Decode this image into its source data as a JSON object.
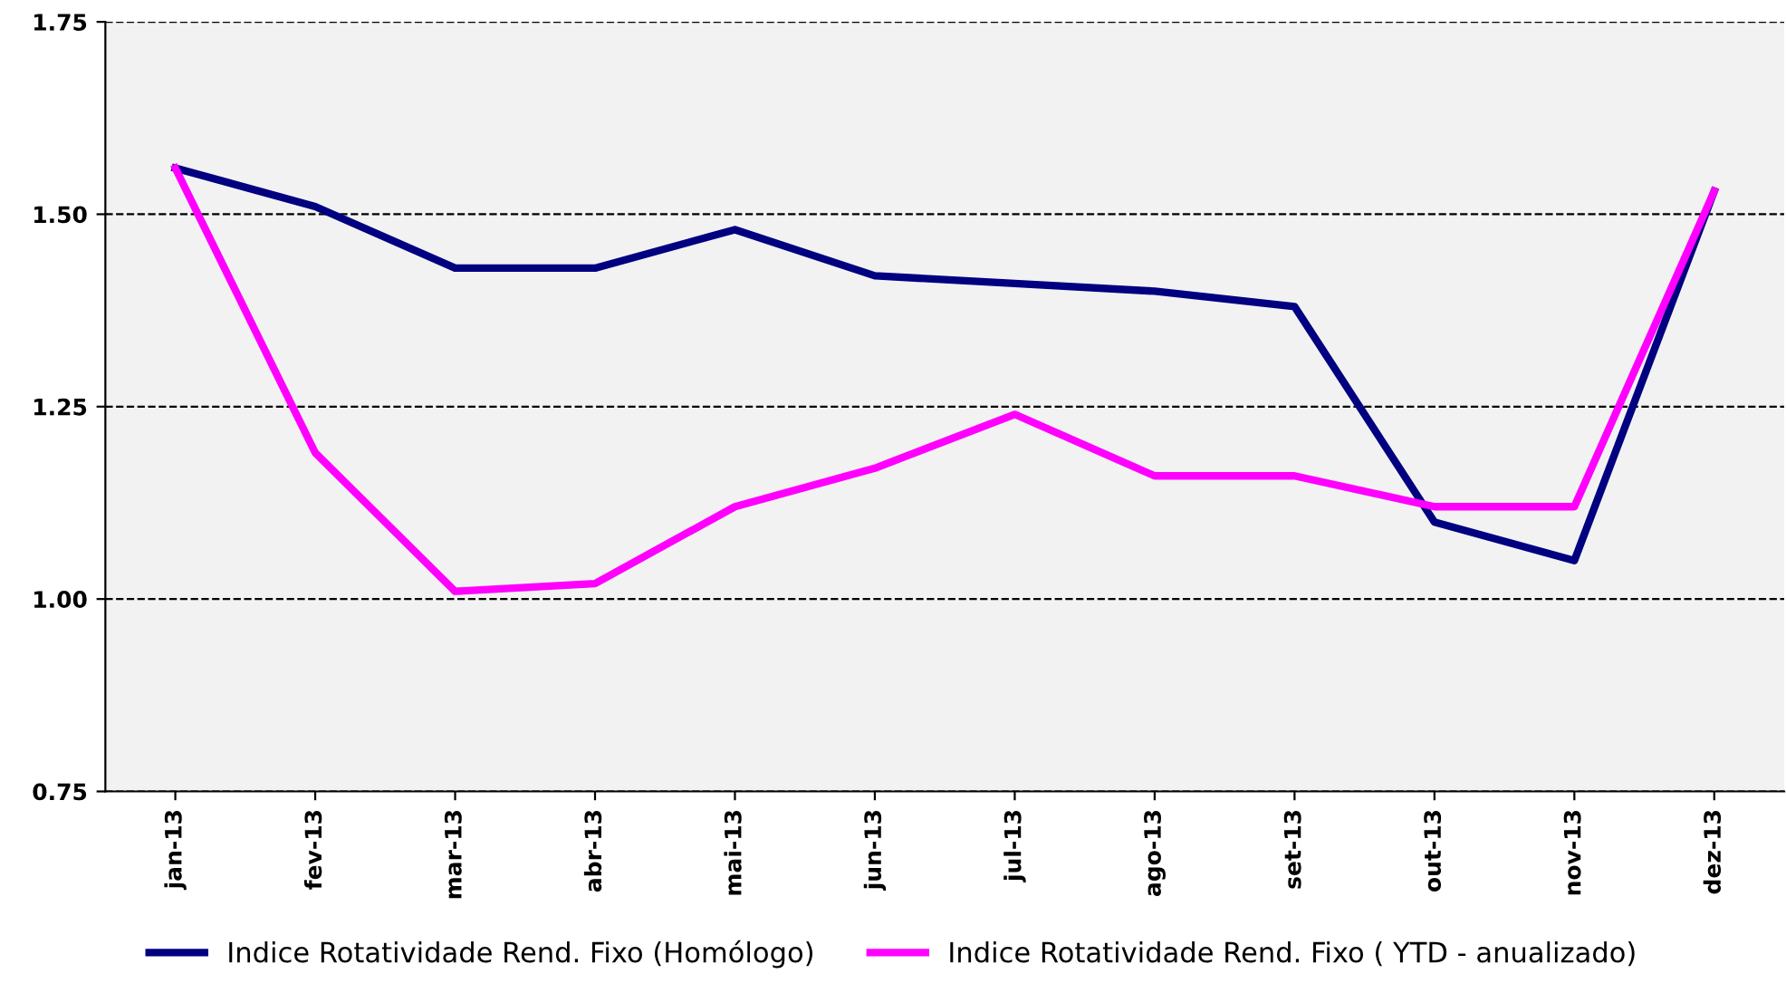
{
  "chart_data": {
    "type": "line",
    "categories": [
      "jan-13",
      "fev-13",
      "mar-13",
      "abr-13",
      "mai-13",
      "jun-13",
      "jul-13",
      "ago-13",
      "set-13",
      "out-13",
      "nov-13",
      "dez-13"
    ],
    "series": [
      {
        "name": "Indice Rotatividade Rend. Fixo (Homólogo)",
        "color": "#000080",
        "values": [
          1.56,
          1.51,
          1.43,
          1.43,
          1.48,
          1.42,
          1.41,
          1.4,
          1.38,
          1.1,
          1.05,
          1.53
        ]
      },
      {
        "name": "Indice Rotatividade Rend. Fixo ( YTD - anualizado)",
        "color": "#ff00ff",
        "values": [
          1.56,
          1.19,
          1.01,
          1.02,
          1.12,
          1.17,
          1.24,
          1.16,
          1.16,
          1.12,
          1.12,
          1.53
        ]
      }
    ],
    "ylim": [
      0.75,
      1.75
    ],
    "yticks": [
      {
        "value": 0.75,
        "label": "0.75"
      },
      {
        "value": 1.0,
        "label": "1.00"
      },
      {
        "value": 1.25,
        "label": "1.25"
      },
      {
        "value": 1.5,
        "label": "1.50"
      },
      {
        "value": 1.75,
        "label": "1.75"
      }
    ],
    "grid": "y",
    "legend": "bottom",
    "marker": "none",
    "line_style": "solid"
  }
}
